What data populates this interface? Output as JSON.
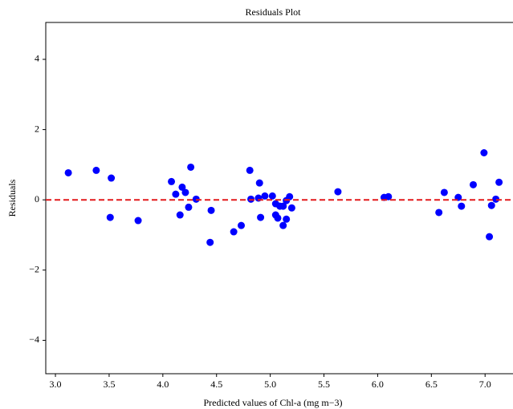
{
  "chart_data": {
    "type": "scatter",
    "title": "Residuals Plot",
    "x_label": "Predicted values of Chl-a (mg m−3)",
    "y_label": "Residuals",
    "x": [
      3.12,
      3.38,
      3.52,
      3.51,
      3.77,
      4.08,
      4.12,
      4.18,
      4.21,
      4.16,
      4.24,
      4.26,
      4.31,
      4.45,
      4.44,
      4.66,
      4.73,
      4.81,
      4.82,
      4.89,
      4.9,
      4.91,
      4.95,
      5.02,
      5.05,
      5.05,
      5.07,
      5.09,
      5.12,
      5.15,
      5.12,
      5.15,
      5.18,
      5.2,
      5.63,
      6.06,
      6.1,
      6.57,
      6.62,
      6.75,
      6.78,
      6.89,
      6.99,
      7.04,
      7.06,
      7.1,
      7.13
    ],
    "values": [
      0.77,
      0.84,
      0.62,
      -0.5,
      -0.59,
      0.52,
      0.16,
      0.36,
      0.21,
      -0.43,
      -0.21,
      0.93,
      0.02,
      -0.3,
      -1.21,
      -0.91,
      -0.73,
      0.84,
      0.02,
      0.05,
      0.48,
      -0.5,
      0.11,
      0.11,
      -0.11,
      -0.43,
      -0.52,
      -0.18,
      -0.18,
      -0.02,
      -0.73,
      -0.55,
      0.09,
      -0.23,
      0.23,
      0.07,
      0.09,
      -0.36,
      0.21,
      0.07,
      -0.18,
      0.43,
      1.34,
      -1.05,
      -0.16,
      0.02,
      0.5
    ],
    "color": "#0000ff",
    "hline": 0,
    "hline_color": "#e31a1c",
    "xlim": [
      2.91,
      7.26
    ],
    "ylim": [
      -4.95,
      5.05
    ],
    "xticks": [
      {
        "value": 3,
        "label": "3.0"
      },
      {
        "value": 3.5,
        "label": "3.5"
      },
      {
        "value": 4,
        "label": "4.0"
      },
      {
        "value": 4.5,
        "label": "4.5"
      },
      {
        "value": 5,
        "label": "5.0"
      },
      {
        "value": 5.5,
        "label": "5.5"
      },
      {
        "value": 6,
        "label": "6.0"
      },
      {
        "value": 6.5,
        "label": "6.5"
      },
      {
        "value": 7,
        "label": "7.0"
      }
    ],
    "yticks": [
      {
        "value": -4,
        "label": "−4"
      },
      {
        "value": -2,
        "label": "−2"
      },
      0,
      2,
      4
    ]
  }
}
